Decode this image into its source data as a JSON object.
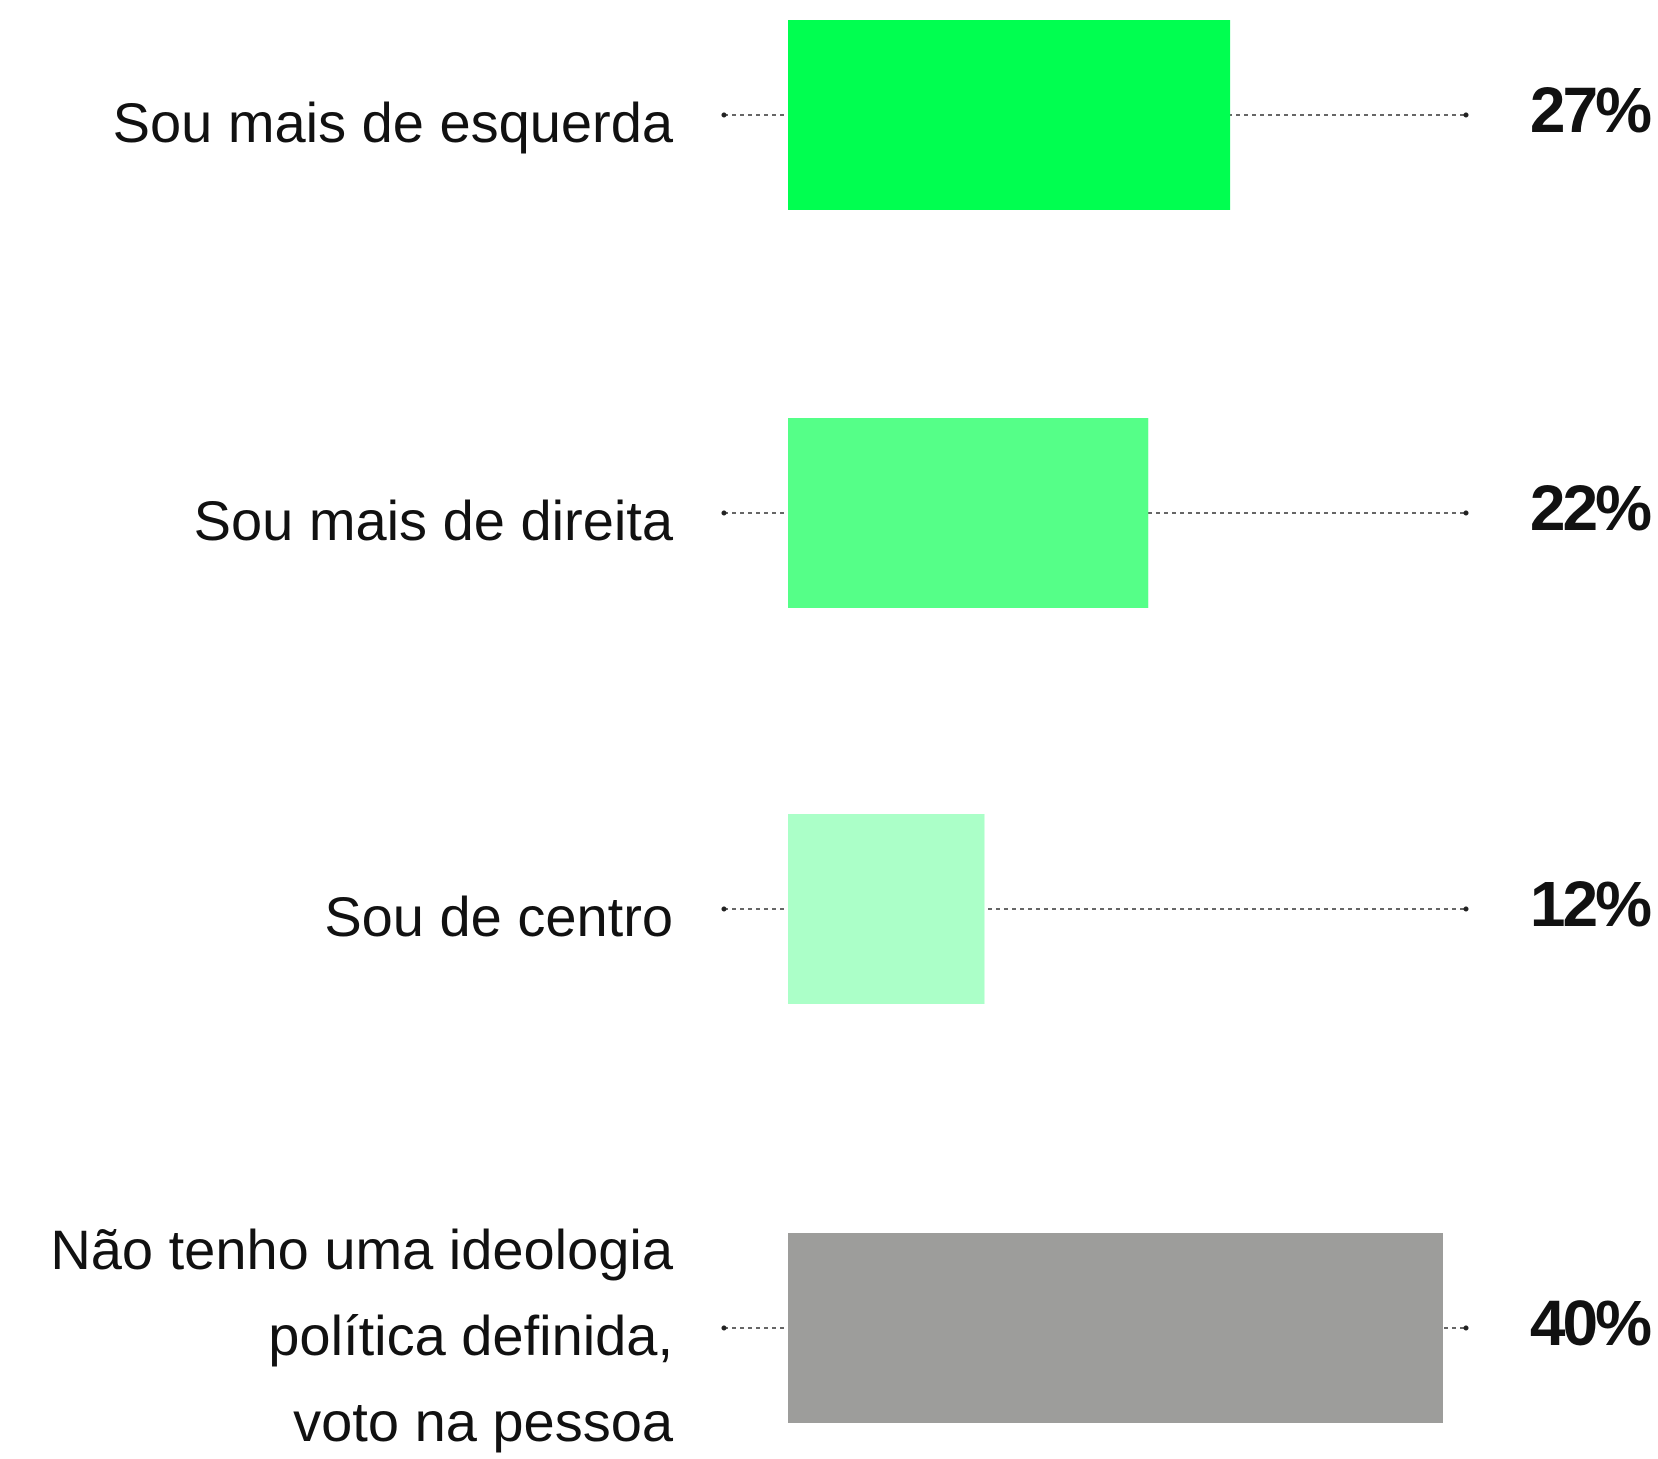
{
  "chart_data": {
    "type": "bar",
    "orientation": "horizontal",
    "categories": [
      [
        "Sou mais de esquerda"
      ],
      [
        "Sou mais de direita"
      ],
      [
        "Sou de centro"
      ],
      [
        "Não tenho uma ideologia",
        "política definida,",
        "voto na pessoa"
      ]
    ],
    "values": [
      27,
      22,
      12,
      40
    ],
    "value_labels": [
      "27%",
      "22%",
      "12%",
      "40%"
    ],
    "colors": [
      "#00ff50",
      "#55ff88",
      "#abffc8",
      "#9d9d9b"
    ]
  }
}
